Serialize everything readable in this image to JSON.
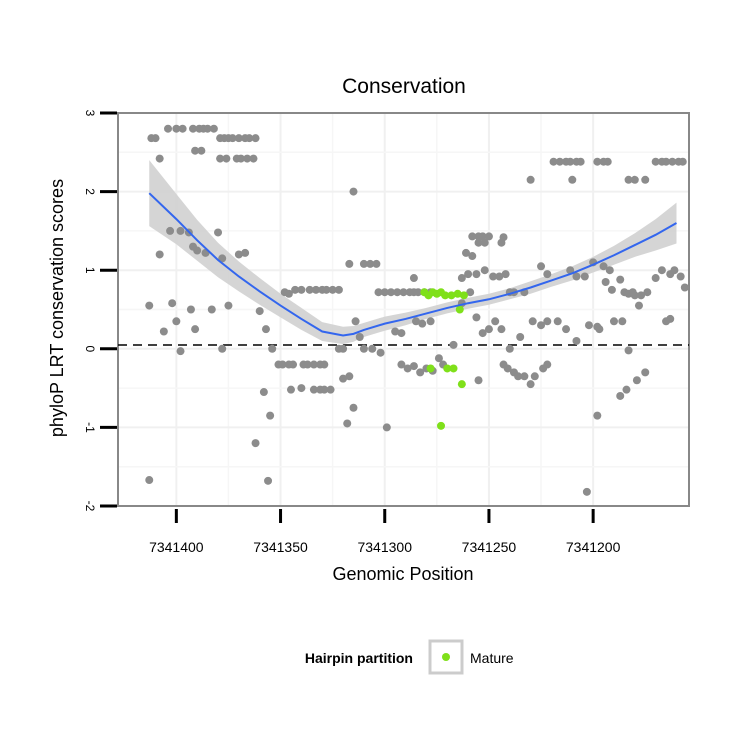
{
  "chart_data": {
    "type": "scatter",
    "title": "Conservation",
    "xlabel": "Genomic Position",
    "ylabel": "phyloP LRT conservation scores",
    "x_reversed": true,
    "xlim": [
      7341428,
      7341154
    ],
    "ylim": [
      -2.0,
      3.0
    ],
    "x_ticks": [
      7341400,
      7341350,
      7341300,
      7341250,
      7341200
    ],
    "x_tick_labels": [
      "7341400",
      "7341350",
      "7341300",
      "7341250",
      "7341200"
    ],
    "y_ticks": [
      -2,
      -1,
      0,
      1,
      2,
      3
    ],
    "y_tick_labels": [
      "-2",
      "-1",
      "0",
      "1",
      "2",
      "3"
    ],
    "reference_line": {
      "y": 0,
      "style": "dashed"
    },
    "legend": {
      "title": "Hairpin partition",
      "position": "bottom",
      "entries": [
        {
          "label": "Mature",
          "color": "#7fe01a"
        }
      ]
    },
    "colors": {
      "other": "#8c8c8c",
      "mature": "#7fe01a",
      "trend": "#3366ee",
      "band": "#d0d0d0"
    },
    "series": [
      {
        "name": "Other",
        "points": [
          [
            7341412,
            2.68
          ],
          [
            7341410,
            2.68
          ],
          [
            7341408,
            2.42
          ],
          [
            7341404,
            2.8
          ],
          [
            7341400,
            2.8
          ],
          [
            7341397,
            2.8
          ],
          [
            7341392,
            2.8
          ],
          [
            7341389,
            2.8
          ],
          [
            7341387,
            2.8
          ],
          [
            7341385,
            2.8
          ],
          [
            7341382,
            2.8
          ],
          [
            7341379,
            2.68
          ],
          [
            7341377,
            2.68
          ],
          [
            7341375,
            2.68
          ],
          [
            7341373,
            2.68
          ],
          [
            7341370,
            2.68
          ],
          [
            7341367,
            2.68
          ],
          [
            7341365,
            2.68
          ],
          [
            7341362,
            2.68
          ],
          [
            7341391,
            2.52
          ],
          [
            7341388,
            2.52
          ],
          [
            7341379,
            2.42
          ],
          [
            7341376,
            2.42
          ],
          [
            7341371,
            2.42
          ],
          [
            7341369,
            2.42
          ],
          [
            7341366,
            2.42
          ],
          [
            7341363,
            2.42
          ],
          [
            7341403,
            1.5
          ],
          [
            7341398,
            1.5
          ],
          [
            7341394,
            1.48
          ],
          [
            7341392,
            1.3
          ],
          [
            7341390,
            1.25
          ],
          [
            7341386,
            1.22
          ],
          [
            7341380,
            1.48
          ],
          [
            7341378,
            1.15
          ],
          [
            7341370,
            1.2
          ],
          [
            7341367,
            1.22
          ],
          [
            7341408,
            1.2
          ],
          [
            7341413,
            0.55
          ],
          [
            7341406,
            0.22
          ],
          [
            7341402,
            0.58
          ],
          [
            7341400,
            0.35
          ],
          [
            7341398,
            -0.03
          ],
          [
            7341393,
            0.5
          ],
          [
            7341391,
            0.25
          ],
          [
            7341383,
            0.5
          ],
          [
            7341378,
            0.0
          ],
          [
            7341375,
            0.55
          ],
          [
            7341360,
            0.48
          ],
          [
            7341357,
            0.25
          ],
          [
            7341354,
            0.0
          ],
          [
            7341348,
            0.72
          ],
          [
            7341346,
            0.7
          ],
          [
            7341343,
            0.75
          ],
          [
            7341340,
            0.75
          ],
          [
            7341336,
            0.75
          ],
          [
            7341333,
            0.75
          ],
          [
            7341330,
            0.75
          ],
          [
            7341328,
            0.75
          ],
          [
            7341325,
            0.75
          ],
          [
            7341322,
            0.75
          ],
          [
            7341351,
            -0.2
          ],
          [
            7341349,
            -0.2
          ],
          [
            7341346,
            -0.2
          ],
          [
            7341344,
            -0.2
          ],
          [
            7341339,
            -0.2
          ],
          [
            7341337,
            -0.2
          ],
          [
            7341334,
            -0.2
          ],
          [
            7341331,
            -0.2
          ],
          [
            7341329,
            -0.2
          ],
          [
            7341334,
            -0.52
          ],
          [
            7341331,
            -0.52
          ],
          [
            7341329,
            -0.52
          ],
          [
            7341326,
            -0.52
          ],
          [
            7341340,
            -0.5
          ],
          [
            7341345,
            -0.52
          ],
          [
            7341358,
            -0.55
          ],
          [
            7341355,
            -0.85
          ],
          [
            7341362,
            -1.2
          ],
          [
            7341356,
            -1.68
          ],
          [
            7341413,
            -1.67
          ],
          [
            7341322,
            0.0
          ],
          [
            7341320,
            0.0
          ],
          [
            7341317,
            1.08
          ],
          [
            7341310,
            1.08
          ],
          [
            7341307,
            1.08
          ],
          [
            7341304,
            1.08
          ],
          [
            7341315,
            2.0
          ],
          [
            7341315,
            -0.75
          ],
          [
            7341318,
            -0.95
          ],
          [
            7341310,
            0.0
          ],
          [
            7341306,
            0.0
          ],
          [
            7341302,
            -0.05
          ],
          [
            7341299,
            -1.0
          ],
          [
            7341303,
            0.72
          ],
          [
            7341300,
            0.72
          ],
          [
            7341297,
            0.72
          ],
          [
            7341294,
            0.72
          ],
          [
            7341291,
            0.72
          ],
          [
            7341288,
            0.72
          ],
          [
            7341286,
            0.72
          ],
          [
            7341284,
            0.72
          ],
          [
            7341281,
            0.72
          ],
          [
            7341278,
            0.72
          ],
          [
            7341286,
            0.9
          ],
          [
            7341320,
            -0.38
          ],
          [
            7341317,
            -0.35
          ],
          [
            7341314,
            0.35
          ],
          [
            7341312,
            0.15
          ],
          [
            7341292,
            -0.2
          ],
          [
            7341289,
            -0.25
          ],
          [
            7341286,
            -0.22
          ],
          [
            7341283,
            -0.3
          ],
          [
            7341280,
            -0.25
          ],
          [
            7341277,
            -0.28
          ],
          [
            7341274,
            -0.12
          ],
          [
            7341272,
            -0.2
          ],
          [
            7341295,
            0.22
          ],
          [
            7341292,
            0.2
          ],
          [
            7341285,
            0.35
          ],
          [
            7341282,
            0.32
          ],
          [
            7341278,
            0.35
          ],
          [
            7341258,
            1.43
          ],
          [
            7341255,
            1.43
          ],
          [
            7341253,
            1.43
          ],
          [
            7341250,
            1.43
          ],
          [
            7341255,
            1.35
          ],
          [
            7341252,
            1.35
          ],
          [
            7341244,
            1.35
          ],
          [
            7341243,
            1.42
          ],
          [
            7341261,
            1.22
          ],
          [
            7341258,
            1.18
          ],
          [
            7341263,
            0.9
          ],
          [
            7341260,
            0.95
          ],
          [
            7341256,
            0.95
          ],
          [
            7341252,
            1.0
          ],
          [
            7341248,
            0.92
          ],
          [
            7341245,
            0.92
          ],
          [
            7341242,
            0.95
          ],
          [
            7341240,
            0.72
          ],
          [
            7341238,
            0.72
          ],
          [
            7341233,
            0.72
          ],
          [
            7341230,
            2.15
          ],
          [
            7341222,
            0.95
          ],
          [
            7341225,
            1.05
          ],
          [
            7341263,
            0.58
          ],
          [
            7341259,
            0.72
          ],
          [
            7341256,
            0.4
          ],
          [
            7341253,
            0.2
          ],
          [
            7341250,
            0.25
          ],
          [
            7341247,
            0.35
          ],
          [
            7341244,
            0.25
          ],
          [
            7341240,
            0.0
          ],
          [
            7341235,
            0.15
          ],
          [
            7341229,
            0.35
          ],
          [
            7341225,
            0.3
          ],
          [
            7341222,
            0.35
          ],
          [
            7341243,
            -0.2
          ],
          [
            7341241,
            -0.25
          ],
          [
            7341238,
            -0.3
          ],
          [
            7341236,
            -0.35
          ],
          [
            7341233,
            -0.35
          ],
          [
            7341230,
            -0.45
          ],
          [
            7341228,
            -0.35
          ],
          [
            7341224,
            -0.25
          ],
          [
            7341222,
            -0.2
          ],
          [
            7341255,
            -0.4
          ],
          [
            7341267,
            0.05
          ],
          [
            7341219,
            2.38
          ],
          [
            7341216,
            2.38
          ],
          [
            7341213,
            2.38
          ],
          [
            7341211,
            2.38
          ],
          [
            7341208,
            2.38
          ],
          [
            7341206,
            2.38
          ],
          [
            7341210,
            2.15
          ],
          [
            7341198,
            2.38
          ],
          [
            7341195,
            2.38
          ],
          [
            7341193,
            2.38
          ],
          [
            7341170,
            2.38
          ],
          [
            7341167,
            2.38
          ],
          [
            7341165,
            2.38
          ],
          [
            7341162,
            2.38
          ],
          [
            7341159,
            2.38
          ],
          [
            7341157,
            2.38
          ],
          [
            7341175,
            2.15
          ],
          [
            7341180,
            2.15
          ],
          [
            7341183,
            2.15
          ],
          [
            7341211,
            1.0
          ],
          [
            7341208,
            0.92
          ],
          [
            7341198,
            0.28
          ],
          [
            7341195,
            1.05
          ],
          [
            7341192,
            1.0
          ],
          [
            7341191,
            0.75
          ],
          [
            7341187,
            0.88
          ],
          [
            7341185,
            0.72
          ],
          [
            7341183,
            0.7
          ],
          [
            7341181,
            0.72
          ],
          [
            7341177,
            0.68
          ],
          [
            7341174,
            0.72
          ],
          [
            7341180,
            0.68
          ],
          [
            7341178,
            0.55
          ],
          [
            7341170,
            0.9
          ],
          [
            7341167,
            1.0
          ],
          [
            7341163,
            0.95
          ],
          [
            7341161,
            1.0
          ],
          [
            7341158,
            0.92
          ],
          [
            7341156,
            0.78
          ],
          [
            7341213,
            0.25
          ],
          [
            7341217,
            0.35
          ],
          [
            7341208,
            0.1
          ],
          [
            7341204,
            0.92
          ],
          [
            7341200,
            1.1
          ],
          [
            7341202,
            0.3
          ],
          [
            7341197,
            0.25
          ],
          [
            7341194,
            0.85
          ],
          [
            7341190,
            0.35
          ],
          [
            7341186,
            0.35
          ],
          [
            7341184,
            -0.52
          ],
          [
            7341187,
            -0.6
          ],
          [
            7341198,
            -0.85
          ],
          [
            7341203,
            -1.82
          ],
          [
            7341175,
            -0.3
          ],
          [
            7341179,
            -0.4
          ],
          [
            7341163,
            0.38
          ],
          [
            7341165,
            0.35
          ],
          [
            7341183,
            -0.02
          ]
        ]
      },
      {
        "name": "Mature",
        "points": [
          [
            7341281,
            0.72
          ],
          [
            7341279,
            0.68
          ],
          [
            7341277,
            0.72
          ],
          [
            7341275,
            0.7
          ],
          [
            7341273,
            0.72
          ],
          [
            7341271,
            0.68
          ],
          [
            7341268,
            0.68
          ],
          [
            7341265,
            0.7
          ],
          [
            7341262,
            0.68
          ],
          [
            7341264,
            0.5
          ],
          [
            7341278,
            -0.25
          ],
          [
            7341270,
            -0.25
          ],
          [
            7341267,
            -0.25
          ],
          [
            7341263,
            -0.45
          ],
          [
            7341273,
            -0.98
          ]
        ]
      }
    ],
    "trend": {
      "method": "loess",
      "points": [
        [
          7341413,
          1.98
        ],
        [
          7341400,
          1.65
        ],
        [
          7341390,
          1.38
        ],
        [
          7341380,
          1.13
        ],
        [
          7341370,
          0.92
        ],
        [
          7341360,
          0.73
        ],
        [
          7341350,
          0.55
        ],
        [
          7341340,
          0.38
        ],
        [
          7341330,
          0.22
        ],
        [
          7341320,
          0.17
        ],
        [
          7341315,
          0.19
        ],
        [
          7341310,
          0.24
        ],
        [
          7341300,
          0.32
        ],
        [
          7341290,
          0.38
        ],
        [
          7341280,
          0.45
        ],
        [
          7341270,
          0.52
        ],
        [
          7341260,
          0.58
        ],
        [
          7341250,
          0.63
        ],
        [
          7341240,
          0.7
        ],
        [
          7341230,
          0.78
        ],
        [
          7341220,
          0.87
        ],
        [
          7341210,
          0.96
        ],
        [
          7341200,
          1.07
        ],
        [
          7341190,
          1.19
        ],
        [
          7341180,
          1.32
        ],
        [
          7341170,
          1.45
        ],
        [
          7341160,
          1.6
        ]
      ],
      "band_halfwidth": [
        0.42,
        0.32,
        0.26,
        0.22,
        0.19,
        0.17,
        0.15,
        0.14,
        0.12,
        0.11,
        0.1,
        0.09,
        0.09,
        0.08,
        0.07,
        0.07,
        0.07,
        0.07,
        0.07,
        0.08,
        0.08,
        0.09,
        0.1,
        0.12,
        0.15,
        0.2,
        0.26
      ]
    }
  }
}
